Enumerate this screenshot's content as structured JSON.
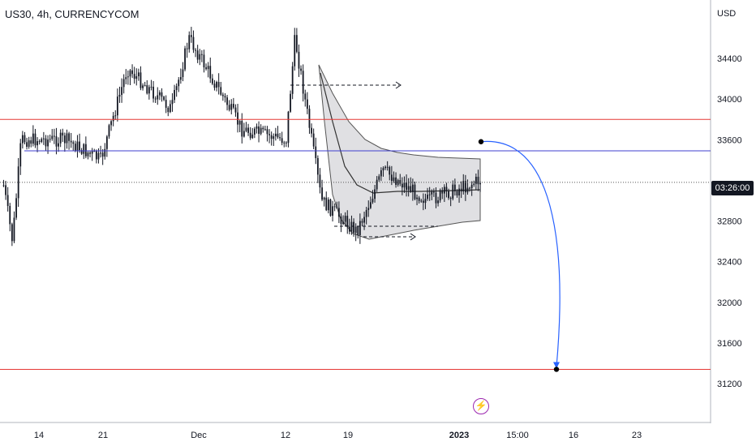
{
  "header": {
    "title": "US30, 4h, CURRENCYCOM"
  },
  "axis": {
    "currency": "USD",
    "y_ticks": [
      "34400",
      "34000",
      "33600",
      "32800",
      "32400",
      "32000",
      "31600",
      "31200"
    ],
    "x_ticks": [
      "14",
      "21",
      "Dec",
      "12",
      "19",
      "2023",
      "15:00",
      "16",
      "23"
    ],
    "countdown": "03:26:00"
  },
  "colors": {
    "candle": "#131722",
    "resistance": "#e53935",
    "support": "#e53935",
    "mid_level": "#3f3fcf",
    "arrow": "#2962ff",
    "band_fill": "#d6d6d9",
    "bolt": "#9c27b0"
  },
  "chart_data": {
    "type": "candlestick",
    "symbol": "US30",
    "timeframe": "4h",
    "exchange": "CURRENCYCOM",
    "y_unit": "USD",
    "ylim": [
      30800,
      35600
    ],
    "horizontal_levels": [
      {
        "role": "resistance",
        "price": 33800
      },
      {
        "role": "blue line",
        "price": 33490
      },
      {
        "role": "current price (dotted)",
        "price": 33180
      },
      {
        "role": "target",
        "price": 31340
      }
    ],
    "price_path_approx": [
      {
        "date": "Nov 10",
        "price": 33150
      },
      {
        "date": "Nov 11",
        "price": 32600
      },
      {
        "date": "Nov 12",
        "price": 33600
      },
      {
        "date": "Nov 17",
        "price": 33600
      },
      {
        "date": "Nov 21",
        "price": 33400
      },
      {
        "date": "Nov 24",
        "price": 34300
      },
      {
        "date": "Nov 29",
        "price": 33900
      },
      {
        "date": "Dec 1",
        "price": 34600
      },
      {
        "date": "Dec 7",
        "price": 33700
      },
      {
        "date": "Dec 12",
        "price": 33600
      },
      {
        "date": "Dec 13",
        "price": 34600
      },
      {
        "date": "Dec 16",
        "price": 33000
      },
      {
        "date": "Dec 20",
        "price": 32700
      },
      {
        "date": "Dec 23",
        "price": 33300
      },
      {
        "date": "Dec 28",
        "price": 33000
      },
      {
        "date": "Jan 3",
        "price": 33200
      }
    ],
    "projection": {
      "from_price": 33580,
      "to_price": 31340
    }
  }
}
